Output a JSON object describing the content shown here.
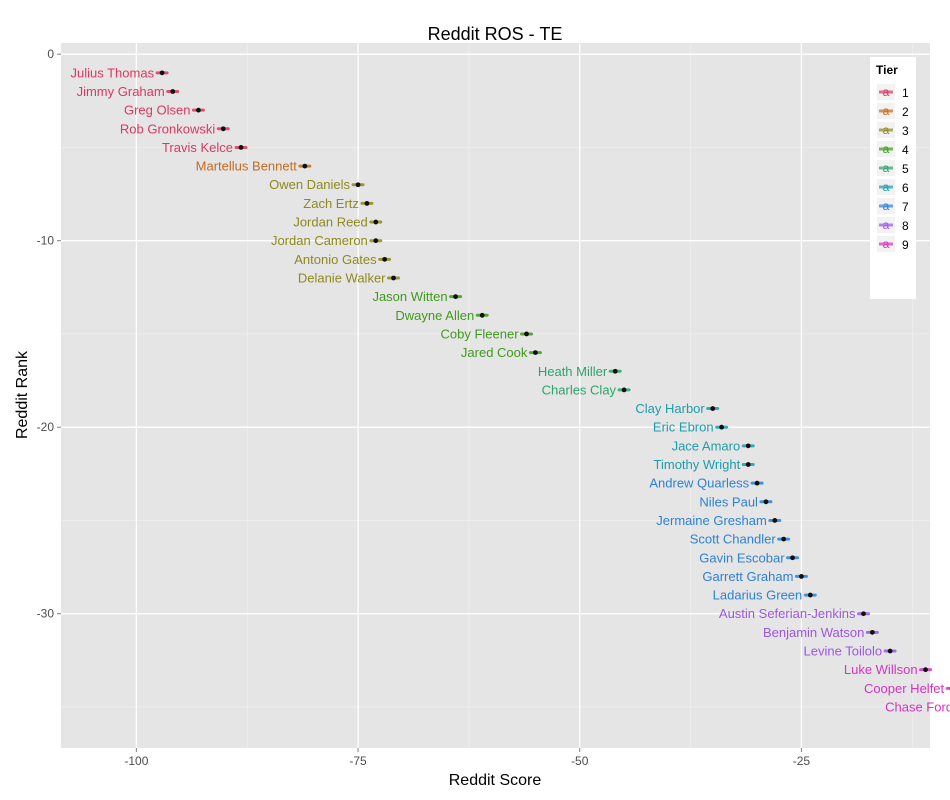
{
  "chart_data": {
    "type": "scatter",
    "title": "Reddit ROS -  TE",
    "xlabel": "Reddit Score",
    "ylabel": "Reddit Rank",
    "xlim": [
      -108.5,
      -10.5
    ],
    "ylim": [
      -37.2,
      0.6
    ],
    "xticks": [
      -100,
      -75,
      -50,
      -25
    ],
    "xtick_labels": [
      "-100",
      "-75",
      "-50",
      "-25"
    ],
    "yticks": [
      0,
      -10,
      -20,
      -30
    ],
    "ytick_labels": [
      "0",
      "-10",
      "-20",
      "-30"
    ],
    "grid": true,
    "legend": {
      "title": "Tier",
      "placement": "top-right",
      "key_glyph": "a",
      "entries": [
        "1",
        "2",
        "3",
        "4",
        "5",
        "6",
        "7",
        "8",
        "9"
      ]
    },
    "tier_colors": {
      "1": "#E0365F",
      "2": "#C66A1F",
      "3": "#8E8A1D",
      "4": "#3E9B1D",
      "5": "#2BA46B",
      "6": "#1E9DAD",
      "7": "#2C82D8",
      "8": "#9A57E6",
      "9": "#D931C3"
    },
    "points": [
      {
        "name": "Julius Thomas",
        "x": -97.1,
        "y": -1,
        "tier": 1
      },
      {
        "name": "Jimmy Graham",
        "x": -95.9,
        "y": -2,
        "tier": 1
      },
      {
        "name": "Greg Olsen",
        "x": -93.0,
        "y": -3,
        "tier": 1
      },
      {
        "name": "Rob Gronkowski",
        "x": -90.2,
        "y": -4,
        "tier": 1
      },
      {
        "name": "Travis Kelce",
        "x": -88.2,
        "y": -5,
        "tier": 1
      },
      {
        "name": "Martellus Bennett",
        "x": -81.0,
        "y": -6,
        "tier": 2
      },
      {
        "name": "Owen Daniels",
        "x": -75.0,
        "y": -7,
        "tier": 3
      },
      {
        "name": "Zach Ertz",
        "x": -74.0,
        "y": -8,
        "tier": 3
      },
      {
        "name": "Jordan Reed",
        "x": -73.0,
        "y": -9,
        "tier": 3
      },
      {
        "name": "Jordan Cameron",
        "x": -73.0,
        "y": -10,
        "tier": 3
      },
      {
        "name": "Antonio Gates",
        "x": -72.0,
        "y": -11,
        "tier": 3
      },
      {
        "name": "Delanie Walker",
        "x": -71.0,
        "y": -12,
        "tier": 3
      },
      {
        "name": "Jason Witten",
        "x": -64.0,
        "y": -13,
        "tier": 4
      },
      {
        "name": "Dwayne Allen",
        "x": -61.0,
        "y": -14,
        "tier": 4
      },
      {
        "name": "Coby Fleener",
        "x": -56.0,
        "y": -15,
        "tier": 4
      },
      {
        "name": "Jared Cook",
        "x": -55.0,
        "y": -16,
        "tier": 4
      },
      {
        "name": "Heath Miller",
        "x": -46.0,
        "y": -17,
        "tier": 5
      },
      {
        "name": "Charles Clay",
        "x": -45.0,
        "y": -18,
        "tier": 5
      },
      {
        "name": "Clay Harbor",
        "x": -35.0,
        "y": -19,
        "tier": 6
      },
      {
        "name": "Eric Ebron",
        "x": -34.0,
        "y": -20,
        "tier": 6
      },
      {
        "name": "Jace Amaro",
        "x": -31.0,
        "y": -21,
        "tier": 6
      },
      {
        "name": "Timothy Wright",
        "x": -31.0,
        "y": -22,
        "tier": 6
      },
      {
        "name": "Andrew Quarless",
        "x": -30.0,
        "y": -23,
        "tier": 7
      },
      {
        "name": "Niles Paul",
        "x": -29.0,
        "y": -24,
        "tier": 7
      },
      {
        "name": "Jermaine Gresham",
        "x": -28.0,
        "y": -25,
        "tier": 7
      },
      {
        "name": "Scott Chandler",
        "x": -27.0,
        "y": -26,
        "tier": 7
      },
      {
        "name": "Gavin Escobar",
        "x": -26.0,
        "y": -27,
        "tier": 7
      },
      {
        "name": "Garrett Graham",
        "x": -25.0,
        "y": -28,
        "tier": 7
      },
      {
        "name": "Ladarius Green",
        "x": -24.0,
        "y": -29,
        "tier": 7
      },
      {
        "name": "Austin Seferian-Jenkins",
        "x": -18.0,
        "y": -30,
        "tier": 8
      },
      {
        "name": "Benjamin Watson",
        "x": -17.0,
        "y": -31,
        "tier": 8
      },
      {
        "name": "Levine Toilolo",
        "x": -15.0,
        "y": -32,
        "tier": 8
      },
      {
        "name": "Luke Willson",
        "x": -11.0,
        "y": -33,
        "tier": 9
      },
      {
        "name": "Cooper Helfet",
        "x": -8.0,
        "y": -34,
        "tier": 9
      },
      {
        "name": "Chase Ford",
        "x": -7.0,
        "y": -35,
        "tier": 9
      }
    ]
  }
}
